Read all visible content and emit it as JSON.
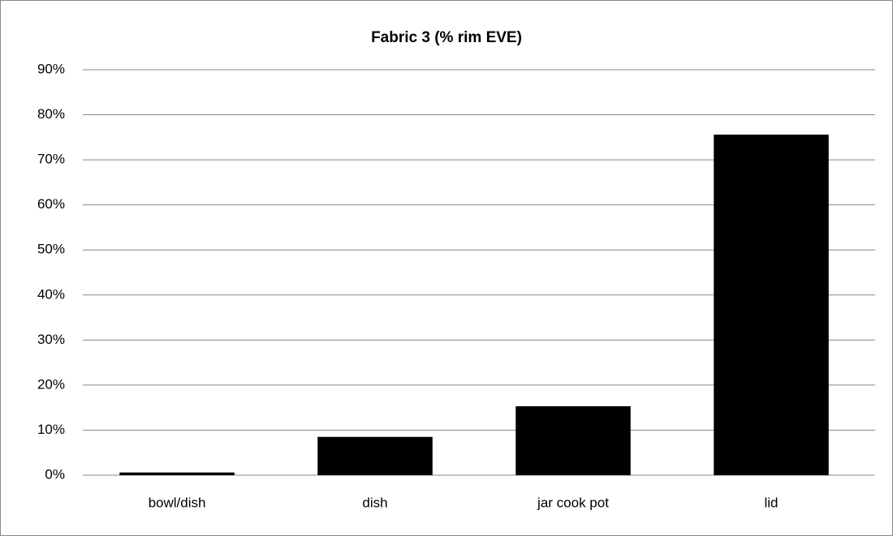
{
  "chart_data": {
    "type": "bar",
    "title": "Fabric 3 (% rim EVE)",
    "categories": [
      "bowl/dish",
      "dish",
      "jar cook pot",
      "lid"
    ],
    "values": [
      0.6,
      8.5,
      15.3,
      75.6
    ],
    "color": "#000000",
    "ylim": [
      0,
      90
    ],
    "yticks": [
      {
        "value": 0,
        "label": "0%"
      },
      {
        "value": 10,
        "label": "10%"
      },
      {
        "value": 20,
        "label": "20%"
      },
      {
        "value": 30,
        "label": "30%"
      },
      {
        "value": 40,
        "label": "40%"
      },
      {
        "value": 50,
        "label": "50%"
      },
      {
        "value": 60,
        "label": "60%"
      },
      {
        "value": 70,
        "label": "70%"
      },
      {
        "value": 80,
        "label": "80%"
      },
      {
        "value": 90,
        "label": "90%"
      }
    ],
    "grid": true
  }
}
